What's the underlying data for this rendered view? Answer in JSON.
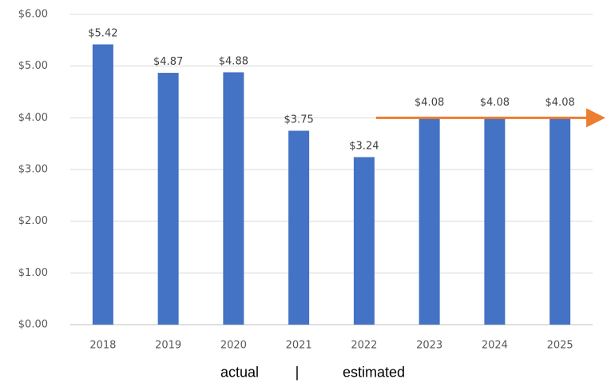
{
  "chart_data": {
    "type": "bar",
    "categories": [
      "2018",
      "2019",
      "2020",
      "2021",
      "2022",
      "2023",
      "2024",
      "2025"
    ],
    "values": [
      5.42,
      4.87,
      4.88,
      3.75,
      3.24,
      4.08,
      4.08,
      4.08
    ],
    "data_labels": [
      "$5.42",
      "$4.87",
      "$4.88",
      "$3.75",
      "$3.24",
      "$4.08",
      "$4.08",
      "$4.08"
    ],
    "yticks": [
      "$0.00",
      "$1.00",
      "$2.00",
      "$3.00",
      "$4.00",
      "$5.00",
      "$6.00"
    ],
    "ylim": [
      0,
      6
    ],
    "grid": true,
    "bar_color": "#4472C4",
    "arrow": {
      "from_category": "2022",
      "to": "beyond 2025",
      "value": 4.0,
      "color": "#ED7D31"
    },
    "title": "",
    "xlabel": "",
    "ylabel": ""
  },
  "footer": {
    "left": "actual",
    "separator": "|",
    "right": "estimated"
  }
}
